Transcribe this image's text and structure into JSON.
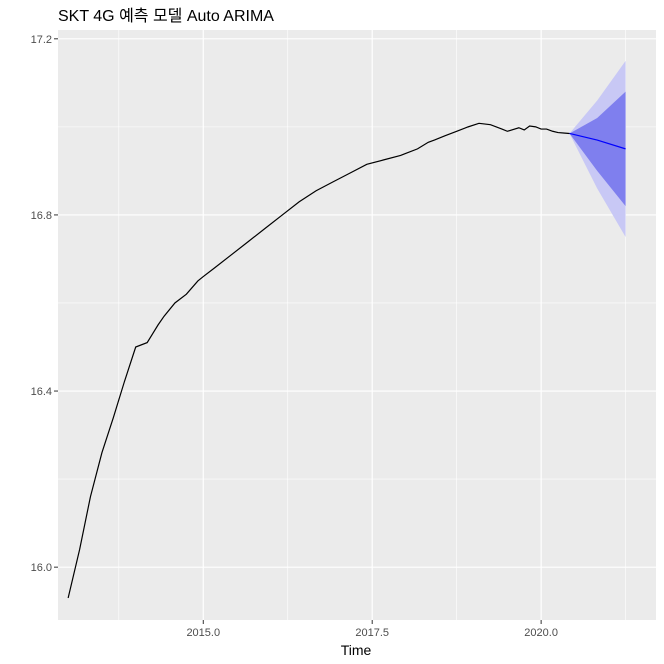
{
  "chart_data": {
    "type": "line",
    "title": "SKT 4G 예측 모델 Auto ARIMA",
    "xlabel": "Time",
    "ylabel": "",
    "xlim": [
      2012.85,
      2021.7
    ],
    "ylim": [
      15.88,
      17.22
    ],
    "x_ticks": [
      2015.0,
      2017.5,
      2020.0
    ],
    "x_tick_labels": [
      "2015.0",
      "2017.5",
      "2020.0"
    ],
    "y_ticks": [
      16.0,
      16.4,
      16.8,
      17.2
    ],
    "y_tick_labels": [
      "16.0",
      "16.4",
      "16.8",
      "17.2"
    ],
    "grid": true,
    "legend": "none",
    "colors": {
      "panel": "#ebebeb",
      "grid": "#ffffff",
      "observed": "#000000",
      "forecast": "#0000ff",
      "band80": "#7f7fee",
      "band95": "#c8c8f5"
    },
    "series": [
      {
        "type": "line",
        "x": [
          2013.0,
          2013.17,
          2013.33,
          2013.5,
          2013.67,
          2013.83,
          2014.0,
          2014.17,
          2014.25,
          2014.33,
          2014.42,
          2014.58,
          2014.75,
          2014.92,
          2015.0,
          2015.17,
          2015.42,
          2015.67,
          2015.92,
          2016.17,
          2016.42,
          2016.67,
          2016.92,
          2017.17,
          2017.42,
          2017.67,
          2017.92,
          2018.0,
          2018.17,
          2018.33,
          2018.42,
          2018.58,
          2018.75,
          2018.92,
          2019.08,
          2019.25,
          2019.42,
          2019.5,
          2019.67,
          2019.75,
          2019.83,
          2019.92,
          2020.0,
          2020.08,
          2020.17,
          2020.25,
          2020.33,
          2020.42
        ],
        "y": [
          15.93,
          16.04,
          16.16,
          16.26,
          16.34,
          16.42,
          16.5,
          16.51,
          16.53,
          16.55,
          16.57,
          16.6,
          16.62,
          16.65,
          16.66,
          16.68,
          16.71,
          16.74,
          16.77,
          16.8,
          16.83,
          16.855,
          16.875,
          16.895,
          16.915,
          16.925,
          16.935,
          16.94,
          16.95,
          16.965,
          16.97,
          16.98,
          16.99,
          17.0,
          17.008,
          17.005,
          16.995,
          16.99,
          16.998,
          16.993,
          17.002,
          17.0,
          16.995,
          16.995,
          16.99,
          16.987,
          16.986,
          16.985
        ]
      },
      {
        "type": "forecast",
        "x": [
          2020.42,
          2020.83,
          2021.25
        ],
        "y": [
          16.985,
          16.97,
          16.95
        ],
        "lo80": [
          16.985,
          16.9,
          16.82
        ],
        "hi80": [
          16.985,
          17.02,
          17.08
        ],
        "lo95": [
          16.985,
          16.86,
          16.75
        ],
        "hi95": [
          16.985,
          17.06,
          17.15
        ]
      }
    ]
  }
}
